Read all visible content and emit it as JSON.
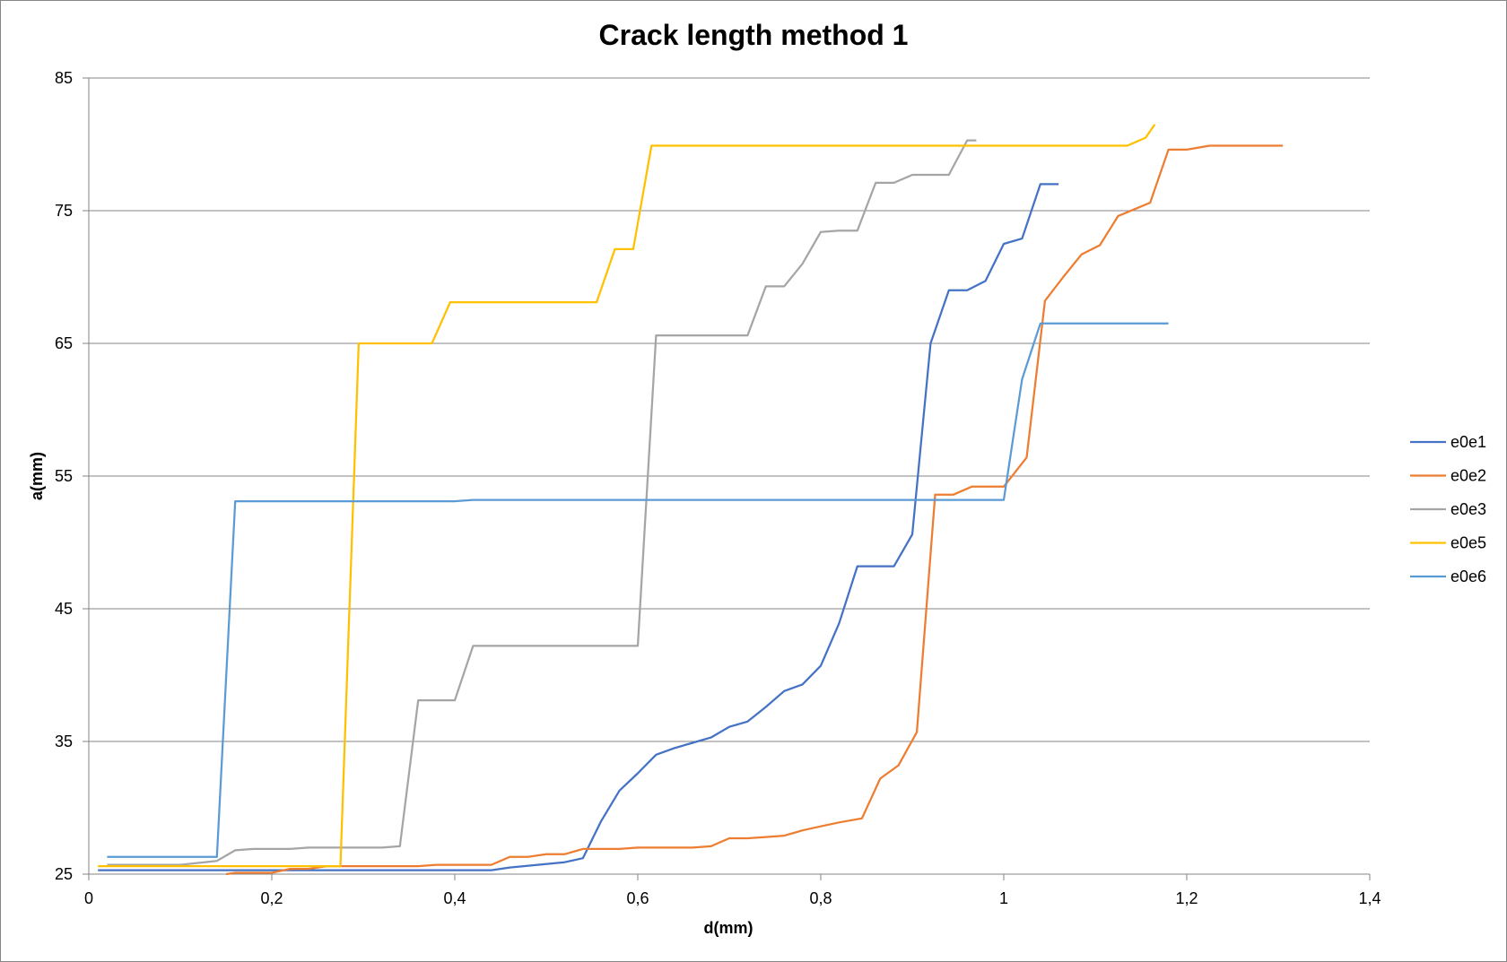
{
  "chart_data": {
    "type": "line",
    "title": "Crack length method 1",
    "xlabel": "d(mm)",
    "ylabel": "a(mm)",
    "xlim": [
      0,
      1.4
    ],
    "ylim": [
      25,
      85
    ],
    "x_ticks": [
      "0",
      "0,2",
      "0,4",
      "0,6",
      "0,8",
      "1",
      "1,2",
      "1,4"
    ],
    "y_ticks": [
      "25",
      "35",
      "45",
      "55",
      "65",
      "75",
      "85"
    ],
    "grid": "horizontal",
    "legend_position": "right",
    "series": [
      {
        "name": "e0e1",
        "color": "#4472C4",
        "points": [
          [
            0.01,
            25.3
          ],
          [
            0.44,
            25.3
          ],
          [
            0.46,
            25.5
          ],
          [
            0.52,
            25.9
          ],
          [
            0.54,
            26.2
          ],
          [
            0.56,
            29
          ],
          [
            0.58,
            31.3
          ],
          [
            0.6,
            32.6
          ],
          [
            0.62,
            34
          ],
          [
            0.64,
            34.5
          ],
          [
            0.66,
            34.9
          ],
          [
            0.68,
            35.3
          ],
          [
            0.7,
            36.1
          ],
          [
            0.72,
            36.5
          ],
          [
            0.74,
            37.6
          ],
          [
            0.76,
            38.8
          ],
          [
            0.78,
            39.3
          ],
          [
            0.8,
            40.7
          ],
          [
            0.82,
            43.9
          ],
          [
            0.84,
            48.2
          ],
          [
            0.88,
            48.2
          ],
          [
            0.9,
            50.6
          ],
          [
            0.92,
            65
          ],
          [
            0.94,
            69
          ],
          [
            0.96,
            69
          ],
          [
            0.98,
            69.7
          ],
          [
            1.0,
            72.5
          ],
          [
            1.02,
            72.9
          ],
          [
            1.04,
            77
          ],
          [
            1.06,
            77
          ]
        ]
      },
      {
        "name": "e0e2",
        "color": "#ED7D31",
        "points": [
          [
            0.15,
            25
          ],
          [
            0.16,
            25.1
          ],
          [
            0.2,
            25.1
          ],
          [
            0.22,
            25.4
          ],
          [
            0.24,
            25.4
          ],
          [
            0.26,
            25.6
          ],
          [
            0.36,
            25.6
          ],
          [
            0.38,
            25.7
          ],
          [
            0.44,
            25.7
          ],
          [
            0.46,
            26.3
          ],
          [
            0.48,
            26.3
          ],
          [
            0.5,
            26.5
          ],
          [
            0.52,
            26.5
          ],
          [
            0.54,
            26.9
          ],
          [
            0.58,
            26.9
          ],
          [
            0.6,
            27
          ],
          [
            0.66,
            27
          ],
          [
            0.68,
            27.1
          ],
          [
            0.7,
            27.7
          ],
          [
            0.72,
            27.7
          ],
          [
            0.74,
            27.8
          ],
          [
            0.76,
            27.9
          ],
          [
            0.78,
            28.3
          ],
          [
            0.8,
            28.6
          ],
          [
            0.82,
            28.9
          ],
          [
            0.845,
            29.2
          ],
          [
            0.865,
            32.2
          ],
          [
            0.885,
            33.2
          ],
          [
            0.905,
            35.7
          ],
          [
            0.925,
            53.6
          ],
          [
            0.945,
            53.6
          ],
          [
            0.965,
            54.2
          ],
          [
            1.0,
            54.2
          ],
          [
            1.025,
            56.4
          ],
          [
            1.045,
            68.2
          ],
          [
            1.065,
            70
          ],
          [
            1.085,
            71.7
          ],
          [
            1.105,
            72.4
          ],
          [
            1.125,
            74.6
          ],
          [
            1.16,
            75.6
          ],
          [
            1.18,
            79.6
          ],
          [
            1.2,
            79.6
          ],
          [
            1.225,
            79.9
          ],
          [
            1.305,
            79.9
          ]
        ]
      },
      {
        "name": "e0e3",
        "color": "#A5A5A5",
        "points": [
          [
            0.02,
            25.7
          ],
          [
            0.1,
            25.7
          ],
          [
            0.14,
            26
          ],
          [
            0.16,
            26.8
          ],
          [
            0.18,
            26.9
          ],
          [
            0.22,
            26.9
          ],
          [
            0.24,
            27
          ],
          [
            0.32,
            27
          ],
          [
            0.34,
            27.1
          ],
          [
            0.36,
            38.1
          ],
          [
            0.4,
            38.1
          ],
          [
            0.42,
            42.2
          ],
          [
            0.6,
            42.2
          ],
          [
            0.62,
            65.6
          ],
          [
            0.72,
            65.6
          ],
          [
            0.74,
            69.3
          ],
          [
            0.76,
            69.3
          ],
          [
            0.78,
            71
          ],
          [
            0.8,
            73.4
          ],
          [
            0.82,
            73.5
          ],
          [
            0.84,
            73.5
          ],
          [
            0.86,
            77.1
          ],
          [
            0.88,
            77.1
          ],
          [
            0.9,
            77.7
          ],
          [
            0.94,
            77.7
          ],
          [
            0.96,
            80.3
          ],
          [
            0.97,
            80.3
          ]
        ]
      },
      {
        "name": "e0e5",
        "color": "#FFC000",
        "points": [
          [
            0.01,
            25.6
          ],
          [
            0.27,
            25.6
          ],
          [
            0.275,
            25.6
          ],
          [
            0.295,
            65
          ],
          [
            0.375,
            65
          ],
          [
            0.395,
            68.1
          ],
          [
            0.555,
            68.1
          ],
          [
            0.575,
            72.1
          ],
          [
            0.595,
            72.1
          ],
          [
            0.615,
            79.9
          ],
          [
            1.135,
            79.9
          ],
          [
            1.155,
            80.5
          ],
          [
            1.165,
            81.5
          ]
        ]
      },
      {
        "name": "e0e6",
        "color": "#5B9BD5",
        "points": [
          [
            0.02,
            26.3
          ],
          [
            0.14,
            26.3
          ],
          [
            0.16,
            53.1
          ],
          [
            0.4,
            53.1
          ],
          [
            0.42,
            53.2
          ],
          [
            1.0,
            53.2
          ],
          [
            1.02,
            62.3
          ],
          [
            1.04,
            66.5
          ],
          [
            1.18,
            66.5
          ]
        ]
      }
    ]
  }
}
